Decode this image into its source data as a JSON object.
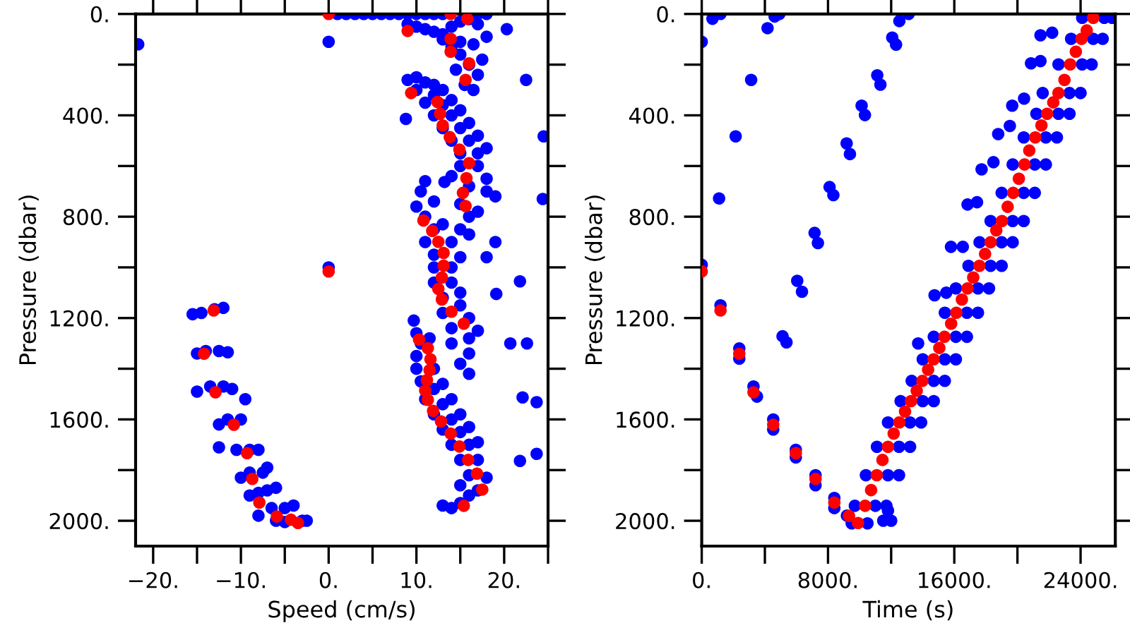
{
  "chart_data": [
    {
      "type": "scatter",
      "xlabel": "Speed (cm/s)",
      "ylabel": "Pressure (dbar)",
      "marker": "circle",
      "xlim": [
        -22,
        25
      ],
      "ylim": [
        2100,
        0
      ],
      "xticks": [
        {
          "value": -20,
          "label": "−20."
        },
        {
          "value": -15,
          "label": null
        },
        {
          "value": -10,
          "label": "−10."
        },
        {
          "value": -5,
          "label": null
        },
        {
          "value": 0,
          "label": "0."
        },
        {
          "value": 5,
          "label": null
        },
        {
          "value": 10,
          "label": "10."
        },
        {
          "value": 15,
          "label": null
        },
        {
          "value": 20,
          "label": "20."
        },
        {
          "value": 25,
          "label": null
        }
      ],
      "yticks": [
        {
          "value": 0,
          "label": "0."
        },
        {
          "value": 200,
          "label": null
        },
        {
          "value": 400,
          "label": "400."
        },
        {
          "value": 600,
          "label": null
        },
        {
          "value": 800,
          "label": "800."
        },
        {
          "value": 1000,
          "label": null
        },
        {
          "value": 1200,
          "label": "1200."
        },
        {
          "value": 1400,
          "label": null
        },
        {
          "value": 1600,
          "label": "1600."
        },
        {
          "value": 1800,
          "label": null
        },
        {
          "value": 2000,
          "label": "2000."
        }
      ],
      "series": [
        {
          "color": "#0000ff",
          "x": [
            1,
            2,
            3,
            4,
            5,
            6,
            7,
            8,
            9,
            10,
            11,
            12,
            13,
            17,
            18,
            -21.7,
            0,
            20.3,
            22.5,
            24.5,
            24.4,
            0,
            21.8,
            19.1,
            8.8,
            13.2,
            9,
            10,
            11,
            12,
            13,
            14,
            15,
            16,
            17,
            13,
            14,
            15,
            16,
            17,
            14.5,
            15.5,
            16.5,
            17.5,
            16.5,
            18,
            15,
            9,
            10,
            11,
            12,
            10,
            12,
            13,
            11,
            13,
            14,
            12,
            14,
            15,
            13,
            15,
            16,
            14,
            16,
            17,
            15,
            17,
            18,
            15,
            17,
            18,
            14,
            16,
            18,
            19,
            15,
            16,
            17,
            15,
            16,
            19,
            18,
            11,
            10.5,
            10,
            12,
            11,
            12,
            13,
            11,
            12,
            14,
            12,
            14,
            15,
            12,
            14,
            15,
            13,
            15,
            16,
            13,
            14,
            16,
            17,
            14,
            16,
            15,
            16,
            10,
            10.5,
            10,
            11.5,
            10,
            12,
            10.5,
            12,
            13,
            11,
            13,
            14,
            12,
            14,
            15,
            13,
            15,
            16,
            14,
            16,
            17,
            15,
            17,
            16,
            18,
            15,
            17,
            16,
            13,
            14,
            15,
            20.7,
            22.6,
            22.1,
            23.7,
            21.8,
            23.7,
            9.7,
            -15.5,
            -14.5,
            -13,
            -12,
            -15,
            -14,
            -12.5,
            -11.5,
            -15,
            -13.5,
            -12,
            -11,
            -9.5,
            -12.5,
            -11.5,
            -10,
            -12.5,
            -10.5,
            -9,
            -8,
            -10,
            -9,
            -7.5,
            -7,
            -9,
            -8,
            -7,
            -6,
            -6.5,
            -5,
            -4,
            -8,
            -6,
            -5,
            -3,
            -2.5
          ],
          "values": [
            0,
            0,
            0,
            0,
            0,
            0,
            0,
            0,
            0,
            0,
            0,
            0,
            0,
            0,
            0,
            120,
            110,
            60,
            260,
            483,
            730,
            1000,
            1055,
            1105,
            414,
            663,
            40,
            50,
            60,
            70,
            80,
            50,
            30,
            20,
            40,
            100,
            130,
            160,
            200,
            240,
            220,
            280,
            300,
            180,
            120,
            90,
            110,
            260,
            250,
            270,
            280,
            300,
            320,
            300,
            350,
            360,
            340,
            400,
            400,
            380,
            450,
            450,
            430,
            500,
            500,
            480,
            550,
            550,
            530,
            600,
            600,
            650,
            640,
            680,
            700,
            720,
            750,
            800,
            780,
            850,
            870,
            900,
            960,
            660,
            700,
            760,
            740,
            800,
            850,
            830,
            900,
            950,
            900,
            1000,
            1000,
            960,
            1060,
            1060,
            1100,
            1120,
            1150,
            1200,
            1180,
            1240,
            1280,
            1250,
            1300,
            1340,
            1380,
            1420,
            1260,
            1300,
            1350,
            1280,
            1400,
            1400,
            1450,
            1480,
            1460,
            1520,
            1540,
            1520,
            1580,
            1600,
            1580,
            1640,
            1650,
            1630,
            1700,
            1700,
            1690,
            1760,
            1760,
            1820,
            1830,
            1860,
            1880,
            1900,
            1940,
            1950,
            1930,
            1300,
            1300,
            1513,
            1532,
            1764,
            1736,
            1210,
            1185,
            1180,
            1165,
            1160,
            1340,
            1330,
            1330,
            1335,
            1490,
            1470,
            1470,
            1480,
            1520,
            1620,
            1600,
            1600,
            1710,
            1720,
            1720,
            1720,
            1830,
            1810,
            1810,
            1790,
            1900,
            1890,
            1880,
            1870,
            1950,
            1950,
            1940,
            1980,
            2000,
            2005,
            2000,
            2000
          ]
        },
        {
          "color": "#ff0000",
          "x": [
            0,
            9,
            13.9,
            15.8,
            13.9,
            13.9,
            16,
            15.6,
            9.4,
            12.4,
            12.7,
            13,
            13.8,
            14.9,
            16,
            15.7,
            15.3,
            15.6,
            10.8,
            11.8,
            12.5,
            13.1,
            13.1,
            0,
            12.9,
            12.5,
            12.9,
            14,
            -13.1,
            15.4,
            10.3,
            11.3,
            11.6,
            11.5,
            11.2,
            11,
            11.3,
            11.9,
            12.8,
            13.9,
            14.9,
            15.9,
            16.9,
            17.5,
            15.4,
            -14.2,
            -12.9,
            -10.8,
            -9.3,
            -8.7,
            -7.9,
            -5.9,
            -4.3,
            -3.5
          ],
          "values": [
            0,
            67,
            0,
            19,
            98,
            149,
            195,
            260,
            312,
            347,
            394,
            440,
            486,
            535,
            589,
            648,
            706,
            758,
            815,
            856,
            899,
            943,
            993,
            1016,
            1040,
            1085,
            1127,
            1175,
            1170,
            1222,
            1285,
            1319,
            1363,
            1406,
            1445,
            1486,
            1523,
            1566,
            1608,
            1656,
            1707,
            1760,
            1814,
            1877,
            1941,
            1341,
            1493,
            1621,
            1733,
            1835,
            1928,
            1983,
            1996,
            2009
          ]
        }
      ]
    },
    {
      "type": "scatter",
      "xlabel": "Time (s)",
      "ylabel": "Pressure (dbar)",
      "marker": "circle",
      "xlim": [
        0,
        26200
      ],
      "ylim": [
        2100,
        0
      ],
      "xticks": [
        {
          "value": 0,
          "label": "0."
        },
        {
          "value": 4000,
          "label": null
        },
        {
          "value": 8000,
          "label": "8000."
        },
        {
          "value": 12000,
          "label": null
        },
        {
          "value": 16000,
          "label": "16000."
        },
        {
          "value": 20000,
          "label": null
        },
        {
          "value": 24000,
          "label": "24000."
        }
      ],
      "yticks": [
        {
          "value": 0,
          "label": "0."
        },
        {
          "value": 200,
          "label": null
        },
        {
          "value": 400,
          "label": "400."
        },
        {
          "value": 600,
          "label": null
        },
        {
          "value": 800,
          "label": "800."
        },
        {
          "value": 1000,
          "label": null
        },
        {
          "value": 1200,
          "label": "1200."
        },
        {
          "value": 1400,
          "label": null
        },
        {
          "value": 1600,
          "label": "1600."
        },
        {
          "value": 1800,
          "label": null
        },
        {
          "value": 2000,
          "label": "2000."
        }
      ],
      "series": [
        {
          "color": "#0000ff",
          "x": [
            0,
            680,
            1190,
            3130,
            2150,
            1100,
            0,
            4170,
            4620,
            4920,
            11120,
            11320,
            10130,
            10340,
            9180,
            9390,
            8100,
            8340,
            7150,
            7360,
            6050,
            6350,
            5120,
            5370,
            12070,
            12310,
            12520,
            13110,
            1190,
            2380,
            2380,
            3280,
            3500,
            4530,
            4530,
            5960,
            5960,
            7210,
            7210,
            8400,
            8400,
            9200,
            21460,
            22200,
            20860,
            21460,
            19670,
            20420,
            18780,
            19520,
            17730,
            18480,
            16840,
            17440,
            15790,
            16540,
            14750,
            15490,
            13710,
            24100,
            25500,
            26000,
            23400,
            24800,
            25400,
            22600,
            24100,
            24700,
            21600,
            23300,
            24000,
            21200,
            22600,
            23300,
            20400,
            21800,
            22500,
            19700,
            21100,
            21800,
            19000,
            20400,
            21100,
            18300,
            19700,
            20400,
            17600,
            19000,
            19700,
            16900,
            18300,
            19000,
            16100,
            17500,
            18200,
            15400,
            16800,
            17500,
            14700,
            16100,
            16800,
            14000,
            15400,
            16100,
            13300,
            14700,
            15400,
            12600,
            14000,
            14700,
            11800,
            13200,
            13900,
            11100,
            12500,
            13200,
            10400,
            11800,
            12500,
            9700,
            11000,
            11700,
            9500,
            10500,
            11500,
            12000,
            11800
          ],
          "values": [
            110,
            19,
            0,
            260,
            483,
            728,
            990,
            56,
            10,
            0,
            242,
            279,
            362,
            399,
            511,
            553,
            683,
            715,
            864,
            904,
            1053,
            1096,
            1272,
            1296,
            93,
            121,
            28,
            0,
            1150,
            1320,
            1360,
            1470,
            1510,
            1600,
            1640,
            1720,
            1750,
            1820,
            1860,
            1910,
            1950,
            1980,
            84,
            74,
            195,
            186,
            362,
            334,
            474,
            442,
            613,
            585,
            752,
            743,
            919,
            919,
            1110,
            1100,
            1300,
            15,
            15,
            15,
            98,
            98,
            98,
            199,
            199,
            199,
            312,
            312,
            312,
            394,
            394,
            394,
            487,
            487,
            487,
            594,
            594,
            594,
            706,
            706,
            706,
            817,
            817,
            817,
            901,
            901,
            901,
            994,
            994,
            994,
            1083,
            1083,
            1083,
            1179,
            1179,
            1179,
            1274,
            1274,
            1274,
            1363,
            1363,
            1363,
            1448,
            1448,
            1448,
            1528,
            1528,
            1528,
            1612,
            1612,
            1612,
            1708,
            1708,
            1708,
            1820,
            1820,
            1820,
            1941,
            1941,
            1941,
            2010,
            2010,
            2000,
            2000,
            1960
          ]
        },
        {
          "color": "#ff0000",
          "x": [
            24800,
            24390,
            24060,
            23700,
            23340,
            22980,
            22600,
            22270,
            21880,
            21520,
            21130,
            20750,
            20450,
            20090,
            19730,
            19380,
            19020,
            18660,
            18300,
            17950,
            17590,
            17200,
            16840,
            16480,
            16130,
            15800,
            15380,
            15050,
            14690,
            14340,
            13980,
            13620,
            13260,
            12880,
            12520,
            12160,
            11800,
            11450,
            11090,
            10730,
            10350,
            9330,
            9900,
            0,
            1190,
            2380,
            3280,
            4530,
            5960,
            7210,
            8400
          ],
          "values": [
            15,
            65,
            98,
            149,
            199,
            260,
            312,
            349,
            394,
            440,
            487,
            539,
            594,
            650,
            706,
            761,
            817,
            854,
            901,
            947,
            994,
            1040,
            1083,
            1127,
            1179,
            1222,
            1274,
            1318,
            1363,
            1404,
            1448,
            1487,
            1528,
            1569,
            1612,
            1656,
            1708,
            1760,
            1820,
            1879,
            1941,
            1981,
            2009,
            1016,
            1170,
            1341,
            1493,
            1621,
            1733,
            1835,
            1928
          ]
        }
      ]
    }
  ]
}
